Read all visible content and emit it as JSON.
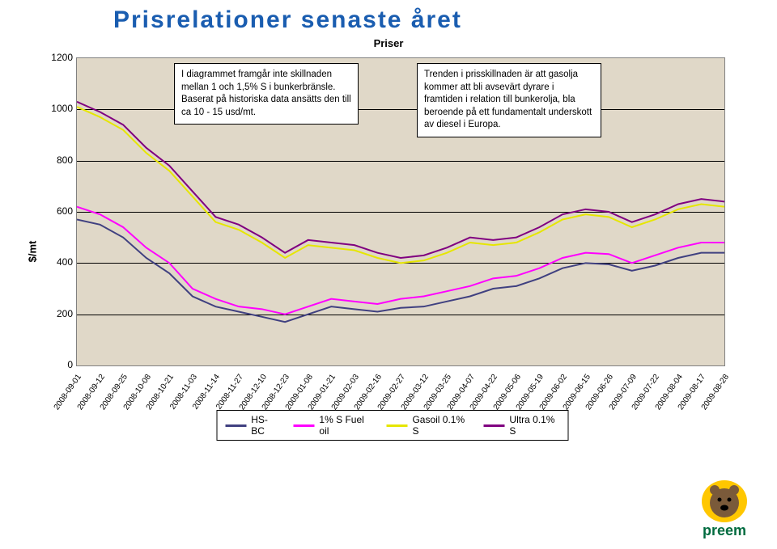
{
  "title": "Prisrelationer senaste året",
  "subtitle": "Priser",
  "ylabel": "$/mt",
  "note_left": "I diagrammet framgår inte skillnaden mellan 1 och 1,5% S i bunkerbränsle. Baserat på historiska data ansätts den till ca 10 - 15 usd/mt.",
  "note_right": "Trenden i prisskillnaden är att gasolja kommer att bli avsevärt dyrare i framtiden i relation till bunkerolja, bla beroende på ett fundamentalt underskott av diesel i Europa.",
  "chart": {
    "type": "line",
    "background_color": "#e0d8c8",
    "grid_color": "#000000",
    "ylim": [
      0,
      1200
    ],
    "ytick_step": 200,
    "yticks": [
      0,
      200,
      400,
      600,
      800,
      1000,
      1200
    ],
    "xlabels": [
      "2008-09-01",
      "2008-09-12",
      "2008-09-25",
      "2008-10-08",
      "2008-10-21",
      "2008-11-03",
      "2008-11-14",
      "2008-11-27",
      "2008-12-10",
      "2008-12-23",
      "2009-01-08",
      "2009-01-21",
      "2009-02-03",
      "2009-02-16",
      "2009-02-27",
      "2009-03-12",
      "2009-03-25",
      "2009-04-07",
      "2009-04-22",
      "2009-05-06",
      "2009-05-19",
      "2009-06-02",
      "2009-06-15",
      "2009-06-26",
      "2009-07-09",
      "2009-07-22",
      "2009-08-04",
      "2009-08-17",
      "2009-08-28"
    ],
    "series": [
      {
        "name": "HS-BC",
        "color": "#404080",
        "width": 2,
        "values": [
          570,
          550,
          500,
          420,
          360,
          270,
          230,
          210,
          190,
          170,
          200,
          230,
          220,
          210,
          225,
          230,
          250,
          270,
          300,
          310,
          340,
          380,
          400,
          395,
          370,
          390,
          420,
          440,
          440
        ]
      },
      {
        "name": "1% S Fuel oil",
        "color": "#ff00ff",
        "width": 2,
        "values": [
          620,
          590,
          540,
          460,
          400,
          300,
          260,
          230,
          220,
          200,
          230,
          260,
          250,
          240,
          260,
          270,
          290,
          310,
          340,
          350,
          380,
          420,
          440,
          435,
          400,
          430,
          460,
          480,
          480
        ]
      },
      {
        "name": "Gasoil 0.1% S",
        "color": "#e6e600",
        "width": 2,
        "values": [
          1010,
          970,
          920,
          830,
          760,
          660,
          560,
          530,
          480,
          420,
          470,
          460,
          450,
          420,
          400,
          410,
          440,
          480,
          470,
          480,
          520,
          570,
          590,
          580,
          540,
          570,
          610,
          630,
          620
        ]
      },
      {
        "name": "Ultra 0.1% S",
        "color": "#800080",
        "width": 2,
        "values": [
          1030,
          990,
          940,
          850,
          780,
          680,
          580,
          550,
          500,
          440,
          490,
          480,
          470,
          440,
          420,
          430,
          460,
          500,
          490,
          500,
          540,
          590,
          610,
          600,
          560,
          590,
          630,
          650,
          640
        ]
      }
    ],
    "legend_items": [
      "HS-BC",
      "1% S Fuel oil",
      "Gasoil 0.1% S",
      "Ultra 0.1% S"
    ],
    "legend_colors": [
      "#404080",
      "#ff00ff",
      "#e6e600",
      "#800080"
    ]
  },
  "logo": {
    "brand": "preem",
    "ellipse_color": "#ffc700",
    "text_color": "#006b3f",
    "bear_color": "#7a5a3a"
  }
}
